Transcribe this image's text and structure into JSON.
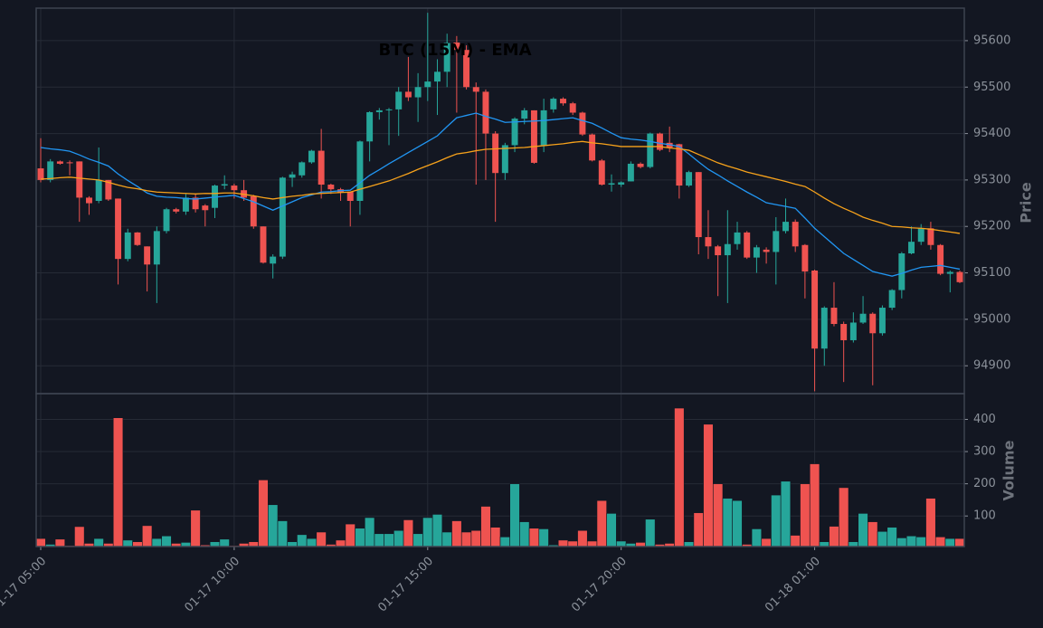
{
  "chart_data": {
    "type": "candlestick",
    "title": "BTC (15M) - EMA",
    "ylabel": "Price",
    "categories": [
      "01-17 05:00",
      null,
      null,
      null,
      null,
      null,
      null,
      null,
      null,
      null,
      null,
      null,
      null,
      null,
      null,
      null,
      null,
      null,
      null,
      null,
      "01-17 10:00",
      null,
      null,
      null,
      null,
      null,
      null,
      null,
      null,
      null,
      null,
      null,
      null,
      null,
      null,
      null,
      null,
      null,
      null,
      null,
      "01-17 15:00",
      null,
      null,
      null,
      null,
      null,
      null,
      null,
      null,
      null,
      null,
      null,
      null,
      null,
      null,
      null,
      null,
      null,
      null,
      null,
      "01-17 20:00",
      null,
      null,
      null,
      null,
      null,
      null,
      null,
      null,
      null,
      null,
      null,
      null,
      null,
      null,
      null,
      null,
      null,
      null,
      null,
      "01-18 01:00",
      null,
      null,
      null,
      null,
      null,
      null,
      null,
      null,
      null,
      null,
      null,
      null,
      null,
      null,
      null
    ],
    "open": [
      95325,
      95300,
      95340,
      95338,
      95340,
      95262,
      95255,
      95300,
      95260,
      95130,
      95187,
      95157,
      95118,
      95190,
      95237,
      95232,
      95262,
      95245,
      95240,
      95288,
      95288,
      95278,
      95265,
      95200,
      95120,
      95135,
      95305,
      95310,
      95338,
      95363,
      95290,
      95280,
      95275,
      95255,
      95383,
      95446,
      95450,
      95452,
      95490,
      95478,
      95500,
      95512,
      95533,
      95596,
      95580,
      95500,
      95490,
      95400,
      95315,
      95375,
      95432,
      95450,
      95375,
      95452,
      95475,
      95465,
      95445,
      95398,
      95342,
      95290,
      95290,
      95297,
      95335,
      95328,
      95400,
      95380,
      95377,
      95288,
      95317,
      95177,
      95157,
      95138,
      95162,
      95187,
      95133,
      95150,
      95145,
      95190,
      95210,
      95160,
      95105,
      94937,
      95025,
      94990,
      94955,
      94993,
      95012,
      94970,
      95025,
      95063,
      95142,
      95167,
      95196,
      95160,
      95098,
      95102
    ],
    "high": [
      95390,
      95345,
      95342,
      95342,
      95340,
      95265,
      95370,
      95300,
      95260,
      95195,
      95188,
      95157,
      95200,
      95240,
      95240,
      95270,
      95270,
      95248,
      95290,
      95310,
      95292,
      95300,
      95268,
      95200,
      95140,
      95307,
      95318,
      95340,
      95365,
      95410,
      95292,
      95283,
      95275,
      95385,
      95448,
      95455,
      95455,
      95500,
      95565,
      95530,
      95660,
      95560,
      95615,
      95610,
      95590,
      95510,
      95495,
      95405,
      95380,
      95435,
      95455,
      95450,
      95475,
      95478,
      95478,
      95468,
      95447,
      95400,
      95345,
      95312,
      95297,
      95340,
      95338,
      95402,
      95402,
      95415,
      95378,
      95320,
      95317,
      95235,
      95160,
      95235,
      95210,
      95190,
      95160,
      95155,
      95220,
      95260,
      95215,
      95162,
      95107,
      95028,
      95080,
      94995,
      95015,
      95050,
      95015,
      95030,
      95065,
      95145,
      95200,
      95205,
      95210,
      95162,
      95105,
      95105
    ],
    "low": [
      95295,
      95295,
      95333,
      95310,
      95210,
      95225,
      95250,
      95255,
      95075,
      95125,
      95158,
      95060,
      95035,
      95185,
      95228,
      95225,
      95230,
      95200,
      95218,
      95280,
      95260,
      95255,
      95195,
      95120,
      95088,
      95130,
      95285,
      95305,
      95335,
      95260,
      95270,
      95255,
      95200,
      95225,
      95340,
      95430,
      95375,
      95395,
      95470,
      95425,
      95470,
      95440,
      95500,
      95445,
      95495,
      95290,
      95300,
      95210,
      95300,
      95360,
      95420,
      95335,
      95360,
      95445,
      95460,
      95440,
      95395,
      95340,
      95288,
      95275,
      95285,
      95297,
      95325,
      95325,
      95362,
      95360,
      95260,
      95285,
      95140,
      95130,
      95050,
      95035,
      95150,
      95130,
      95100,
      95120,
      95075,
      95185,
      95145,
      95045,
      94845,
      94900,
      94985,
      94865,
      94950,
      94990,
      94858,
      94965,
      95020,
      95045,
      95140,
      95160,
      95150,
      95095,
      95058,
      95078
    ],
    "close": [
      95300,
      95340,
      95335,
      95336,
      95262,
      95250,
      95300,
      95258,
      95130,
      95187,
      95160,
      95118,
      95190,
      95237,
      95232,
      95262,
      95237,
      95235,
      95288,
      95291,
      95278,
      95262,
      95200,
      95122,
      95135,
      95305,
      95312,
      95338,
      95363,
      95290,
      95280,
      95273,
      95255,
      95383,
      95446,
      95450,
      95452,
      95490,
      95478,
      95500,
      95512,
      95533,
      95595,
      95580,
      95500,
      95490,
      95400,
      95315,
      95375,
      95432,
      95450,
      95337,
      95450,
      95475,
      95465,
      95445,
      95398,
      95342,
      95290,
      95293,
      95295,
      95335,
      95328,
      95400,
      95365,
      95370,
      95288,
      95317,
      95177,
      95157,
      95138,
      95162,
      95187,
      95133,
      95155,
      95145,
      95190,
      95210,
      95157,
      95103,
      94937,
      95025,
      94990,
      94955,
      94993,
      95012,
      94970,
      95025,
      95063,
      95142,
      95167,
      95196,
      95160,
      95098,
      95102,
      95080
    ],
    "up_color": "#26a69a",
    "down_color": "#ef5350",
    "ylim": [
      94840,
      95670
    ],
    "yticks": [
      94900,
      95000,
      95100,
      95200,
      95300,
      95400,
      95500,
      95600
    ],
    "grid": true,
    "lines": [
      {
        "color": "#2196f3",
        "values": [
          95370,
          95367,
          95365,
          95362,
          95354,
          95345,
          95338,
          95330,
          95313,
          95299,
          95286,
          95272,
          95265,
          95263,
          95262,
          95260,
          95259,
          95261,
          95263,
          95265,
          95267,
          95260,
          95253,
          95244,
          95235,
          95244,
          95253,
          95262,
          95268,
          95274,
          95275,
          95277,
          95278,
          95294,
          95310,
          95322,
          95335,
          95347,
          95359,
          95371,
          95383,
          95395,
          95415,
          95434,
          95439,
          95444,
          95437,
          95431,
          95424,
          95425,
          95426,
          95427,
          95428,
          95430,
          95432,
          95434,
          95428,
          95422,
          95412,
          95401,
          95391,
          95388,
          95386,
          95383,
          95379,
          95376,
          95372,
          95356,
          95339,
          95323,
          95311,
          95298,
          95286,
          95274,
          95263,
          95251,
          95247,
          95243,
          95239,
          95218,
          95196,
          95178,
          95160,
          95142,
          95129,
          95116,
          95103,
          95098,
          95093,
          95099,
          95106,
          95112,
          95114,
          95116,
          95112,
          95108
        ]
      },
      {
        "color": "#f7a21b",
        "values": [
          95302,
          95303,
          95305,
          95306,
          95304,
          95302,
          95300,
          95295,
          95289,
          95284,
          95281,
          95277,
          95274,
          95273,
          95272,
          95271,
          95270,
          95271,
          95271,
          95272,
          95272,
          95269,
          95266,
          95262,
          95259,
          95262,
          95265,
          95267,
          95270,
          95271,
          95272,
          95273,
          95274,
          95280,
          95286,
          95292,
          95298,
          95306,
          95314,
          95323,
          95331,
          95339,
          95348,
          95356,
          95359,
          95363,
          95366,
          95367,
          95368,
          95369,
          95370,
          95372,
          95374,
          95376,
          95378,
          95381,
          95383,
          95380,
          95378,
          95375,
          95372,
          95372,
          95372,
          95372,
          95372,
          95369,
          95367,
          95364,
          95355,
          95346,
          95337,
          95330,
          95324,
          95317,
          95312,
          95307,
          95302,
          95297,
          95291,
          95286,
          95274,
          95261,
          95249,
          95239,
          95230,
          95220,
          95213,
          95207,
          95200,
          95199,
          95197,
          95196,
          95194,
          95191,
          95188,
          95185
        ]
      }
    ],
    "volume": {
      "ylabel": "Volume",
      "values": [
        30,
        12,
        28,
        8,
        67,
        15,
        30,
        15,
        405,
        25,
        20,
        70,
        30,
        38,
        15,
        18,
        118,
        10,
        20,
        28,
        8,
        15,
        20,
        212,
        135,
        85,
        20,
        42,
        30,
        50,
        12,
        25,
        75,
        62,
        95,
        45,
        45,
        55,
        88,
        45,
        95,
        105,
        50,
        85,
        50,
        55,
        130,
        65,
        35,
        200,
        82,
        62,
        60,
        10,
        25,
        22,
        55,
        22,
        148,
        108,
        22,
        15,
        18,
        90,
        12,
        15,
        435,
        20,
        110,
        385,
        200,
        155,
        148,
        12,
        60,
        30,
        165,
        208,
        40,
        200,
        262,
        20,
        68,
        188,
        20,
        108,
        82,
        52,
        65,
        32,
        38,
        35,
        155,
        35,
        30,
        30
      ],
      "ylim": [
        5,
        480
      ],
      "yticks": [
        100,
        200,
        300,
        400
      ]
    }
  }
}
